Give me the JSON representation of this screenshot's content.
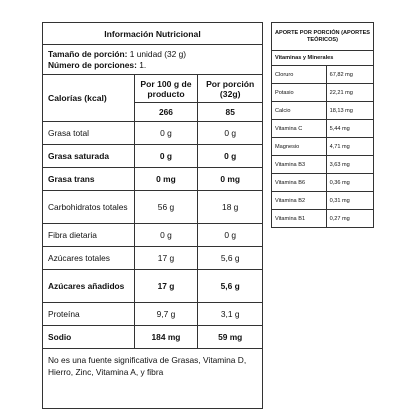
{
  "main": {
    "title": "Información Nutricional",
    "portion_label": "Tamaño de porción:",
    "portion_value": "1 unidad (32 g)",
    "servings_label": "Número de porciones:",
    "servings_value": "1.",
    "calories_label": "Calorías (kcal)",
    "col_100g": "Por 100 g de producto",
    "col_portion": "Por porción (32g)",
    "calories_100g": "266",
    "calories_portion": "85",
    "rows": [
      {
        "label": "Grasa total",
        "v100": "0 g",
        "vportion": "0 g"
      },
      {
        "label": "Grasa saturada",
        "v100": "0 g",
        "vportion": "0 g"
      },
      {
        "label": "Grasa trans",
        "v100": "0 mg",
        "vportion": "0 mg"
      },
      {
        "label": "Carbohidratos totales",
        "v100": "56 g",
        "vportion": "18 g"
      },
      {
        "label": "Fibra dietaria",
        "v100": "0 g",
        "vportion": "0 g"
      },
      {
        "label": "Azúcares totales",
        "v100": "17 g",
        "vportion": "5,6 g"
      },
      {
        "label": "Azúcares añadidos",
        "v100": "17 g",
        "vportion": "5,6 g"
      },
      {
        "label": "Proteína",
        "v100": "9,7 g",
        "vportion": "3,1 g"
      },
      {
        "label": "Sodio",
        "v100": "184 mg",
        "vportion": "59 mg"
      }
    ],
    "footnote": "No es una fuente significativa de Grasas, Vitamina D, Hierro, Zinc, Vitamina A, y fibra"
  },
  "vitamins": {
    "header": "APORTE POR PORCIÓN (APORTES TEÓRICOS)",
    "subheader": "Vitaminas y Minerales",
    "items": [
      {
        "name": "Cloruro",
        "value": "67,82 mg"
      },
      {
        "name": "Potasio",
        "value": "22,21 mg"
      },
      {
        "name": "Calcio",
        "value": "18,13 mg"
      },
      {
        "name": "Vitamina C",
        "value": "5,44 mg"
      },
      {
        "name": "Magnesio",
        "value": "4,71 mg"
      },
      {
        "name": "Vitamina B3",
        "value": "3,63 mg"
      },
      {
        "name": "Vitamina B6",
        "value": "0,36 mg"
      },
      {
        "name": "Vitamina B2",
        "value": "0,31 mg"
      },
      {
        "name": "Vitamina B1",
        "value": "0,27 mg"
      }
    ]
  }
}
